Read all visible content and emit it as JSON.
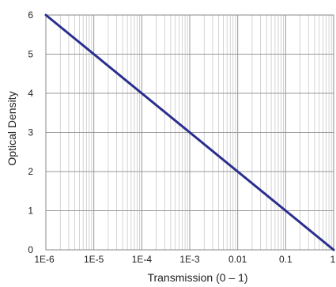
{
  "chart_data": {
    "type": "line",
    "title": "",
    "xlabel": "Transmission (0 – 1)",
    "ylabel": "Optical Density",
    "xscale": "log",
    "xlim": [
      1e-06,
      1
    ],
    "ylim": [
      0,
      6
    ],
    "grid": true,
    "legend": "none",
    "x_tick_labels": [
      "1E-6",
      "1E-5",
      "1E-4",
      "1E-3",
      "0.01",
      "0.1",
      "1"
    ],
    "x_tick_values": [
      1e-06,
      1e-05,
      0.0001,
      0.001,
      0.01,
      0.1,
      1
    ],
    "y_tick_labels": [
      "0",
      "1",
      "2",
      "3",
      "4",
      "5",
      "6"
    ],
    "y_tick_values": [
      0,
      1,
      2,
      3,
      4,
      5,
      6
    ],
    "series": [
      {
        "x": [
          1e-06,
          1
        ],
        "y": [
          6,
          0
        ],
        "color": "#2a2f8f"
      }
    ]
  }
}
